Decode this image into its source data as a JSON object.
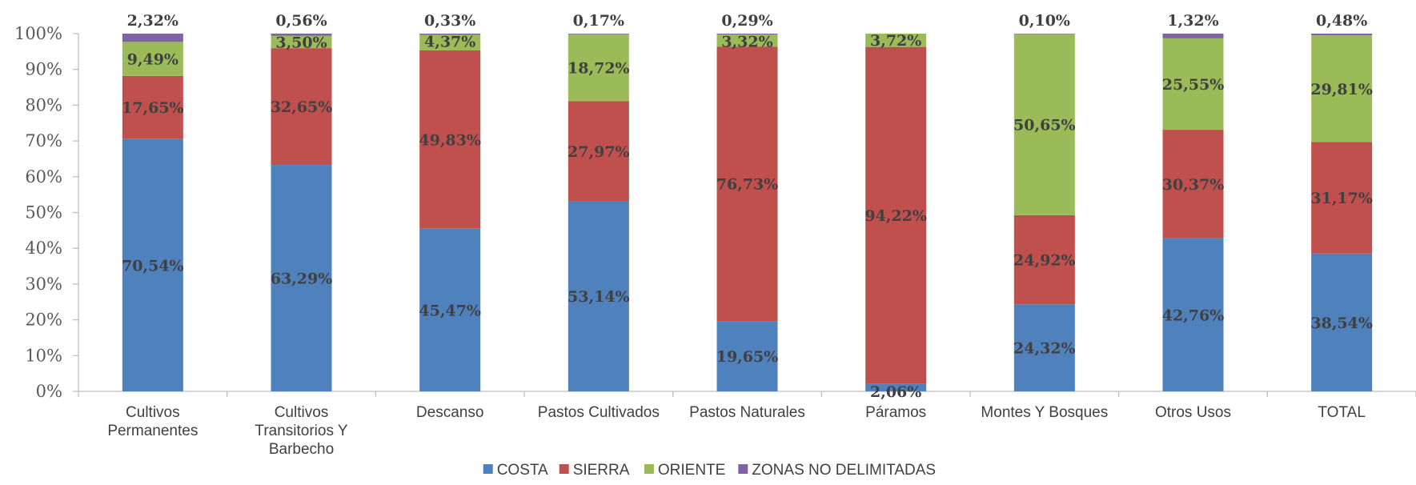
{
  "chart_data": {
    "type": "bar",
    "stacked": true,
    "title": "",
    "xlabel": "",
    "ylabel": "",
    "ylim": [
      0,
      100
    ],
    "y_tick_labels": [
      "0%",
      "10%",
      "20%",
      "30%",
      "40%",
      "50%",
      "60%",
      "70%",
      "80%",
      "90%",
      "100%"
    ],
    "categories": [
      [
        "Cultivos",
        "Permanentes"
      ],
      [
        "Cultivos",
        "Transitorios Y",
        "Barbecho"
      ],
      [
        "Descanso"
      ],
      [
        "Pastos Cultivados"
      ],
      [
        "Pastos Naturales"
      ],
      [
        "Páramos"
      ],
      [
        "Montes Y Bosques"
      ],
      [
        "Otros Usos"
      ],
      [
        "TOTAL"
      ]
    ],
    "series": [
      {
        "name": "COSTA",
        "color": "#4F81BD",
        "values": [
          70.54,
          63.29,
          45.47,
          53.14,
          19.65,
          2.06,
          24.32,
          42.76,
          38.54
        ],
        "labels": [
          "70,54%",
          "63,29%",
          "45,47%",
          "53,14%",
          "19,65%",
          "2,06%",
          "24,32%",
          "42,76%",
          "38,54%"
        ]
      },
      {
        "name": "SIERRA",
        "color": "#C0504D",
        "values": [
          17.65,
          32.65,
          49.83,
          27.97,
          76.73,
          94.22,
          24.92,
          30.37,
          31.17
        ],
        "labels": [
          "17,65%",
          "32,65%",
          "49,83%",
          "27,97%",
          "76,73%",
          "94,22%",
          "24,92%",
          "30,37%",
          "31,17%"
        ]
      },
      {
        "name": "ORIENTE",
        "color": "#9BBB59",
        "values": [
          9.49,
          3.5,
          4.37,
          18.72,
          3.32,
          3.72,
          50.65,
          25.55,
          29.81
        ],
        "labels": [
          "9,49%",
          "3,50%",
          "4,37%",
          "18,72%",
          "3,32%",
          "3,72%",
          "50,65%",
          "25,55%",
          "29,81%"
        ]
      },
      {
        "name": "ZONAS NO DELIMITADAS",
        "color": "#8064A2",
        "values": [
          2.32,
          0.56,
          0.33,
          0.17,
          0.29,
          0.0,
          0.1,
          1.32,
          0.48
        ],
        "labels": [
          "2,32%",
          "0,56%",
          "0,33%",
          "0,17%",
          "0,29%",
          "",
          "0,10%",
          "1,32%",
          "0,48%"
        ]
      }
    ],
    "legend_position": "bottom",
    "gridlines": false
  }
}
